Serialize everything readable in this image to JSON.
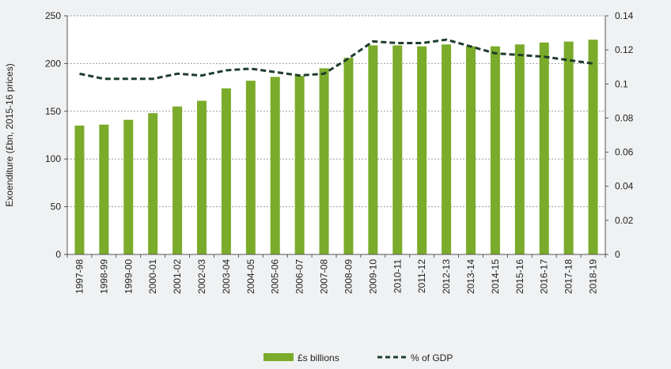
{
  "chart_data": {
    "type": "bar",
    "categories": [
      "1997-98",
      "1998-99",
      "1999-00",
      "2000-01",
      "2001-02",
      "2002-03",
      "2003-04",
      "2004-05",
      "2005-06",
      "2006-07",
      "2007-08",
      "2008-09",
      "2009-10",
      "2010-11",
      "2011-12",
      "2012-13",
      "2013-14",
      "2014-15",
      "2015-16",
      "2016-17",
      "2017-18",
      "2018-19"
    ],
    "series": [
      {
        "name": "£s billions",
        "type": "bar",
        "axis": "left",
        "color": "#7aab2a",
        "values": [
          135,
          136,
          141,
          148,
          155,
          161,
          174,
          182,
          186,
          187,
          195,
          206,
          219,
          219,
          218,
          220,
          218,
          218,
          220,
          222,
          223,
          225
        ]
      },
      {
        "name": "% of GDP",
        "type": "line",
        "axis": "right",
        "color": "#1f3d2b",
        "style": "dashed",
        "values": [
          0.106,
          0.103,
          0.103,
          0.103,
          0.106,
          0.105,
          0.108,
          0.109,
          0.107,
          0.105,
          0.106,
          0.115,
          0.125,
          0.124,
          0.124,
          0.126,
          0.122,
          0.118,
          0.117,
          0.116,
          0.114,
          0.112
        ]
      }
    ],
    "ylabel": "Exoenditure (£bn, 2015-16 prices)",
    "ylim": [
      0,
      250
    ],
    "yticks": [
      "0",
      "50",
      "100",
      "150",
      "200",
      "250"
    ],
    "y2lim": [
      0,
      0.14
    ],
    "y2ticks": [
      "0",
      "0.02",
      "0.04",
      "0.06",
      "0.08",
      "0.1",
      "0.12",
      "0.14"
    ],
    "grid": true,
    "legend_position": "bottom-center"
  }
}
